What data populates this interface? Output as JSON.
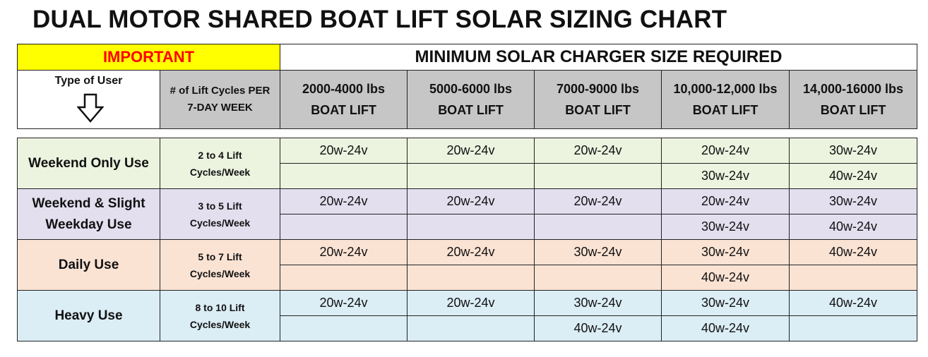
{
  "title": "DUAL MOTOR SHARED BOAT LIFT SOLAR SIZING CHART",
  "header": {
    "important": "IMPORTANT",
    "minimum_solar": "MINIMUM SOLAR CHARGER SIZE REQUIRED",
    "type_of_user": "Type of User",
    "type_of_user_icon": "down-arrow-icon",
    "cycles_header": [
      "# of Lift Cycles PER",
      "7-DAY WEEK"
    ],
    "lift_columns": [
      [
        "2000-4000 lbs",
        "BOAT LIFT"
      ],
      [
        "5000-6000 lbs",
        "BOAT LIFT"
      ],
      [
        "7000-9000 lbs",
        "BOAT LIFT"
      ],
      [
        "10,000-12,000 lbs",
        "BOAT LIFT"
      ],
      [
        "14,000-16000 lbs",
        "BOAT LIFT"
      ]
    ]
  },
  "rows": [
    {
      "user_type": [
        "Weekend Only Use"
      ],
      "cycles": [
        "2 to 4 Lift",
        "Cycles/Week"
      ],
      "color": "#ecf3df",
      "values": [
        [
          "20w-24v",
          "20w-24v",
          "20w-24v",
          "20w-24v",
          "30w-24v"
        ],
        [
          "",
          "",
          "",
          "30w-24v",
          "40w-24v"
        ]
      ]
    },
    {
      "user_type": [
        "Weekend & Slight",
        "Weekday Use"
      ],
      "cycles": [
        "3 to 5 Lift",
        "Cycles/Week"
      ],
      "color": "#e3dfef",
      "values": [
        [
          "20w-24v",
          "20w-24v",
          "20w-24v",
          "20w-24v",
          "30w-24v"
        ],
        [
          "",
          "",
          "",
          "30w-24v",
          "40w-24v"
        ]
      ]
    },
    {
      "user_type": [
        "Daily Use"
      ],
      "cycles": [
        "5 to 7 Lift",
        "Cycles/Week"
      ],
      "color": "#fbe3d4",
      "values": [
        [
          "20w-24v",
          "20w-24v",
          "30w-24v",
          "30w-24v",
          "40w-24v"
        ],
        [
          "",
          "",
          "",
          "40w-24v",
          ""
        ]
      ]
    },
    {
      "user_type": [
        "Heavy Use"
      ],
      "cycles": [
        "8 to 10 Lift",
        "Cycles/Week"
      ],
      "color": "#dbedf5",
      "values": [
        [
          "20w-24v",
          "20w-24v",
          "30w-24v",
          "30w-24v",
          "40w-24v"
        ],
        [
          "",
          "",
          "40w-24v",
          "40w-24v",
          ""
        ]
      ]
    }
  ],
  "colors": {
    "important_bg": "#ffff00",
    "important_text": "#ff0000",
    "header_gray": "#c6c6c6"
  }
}
